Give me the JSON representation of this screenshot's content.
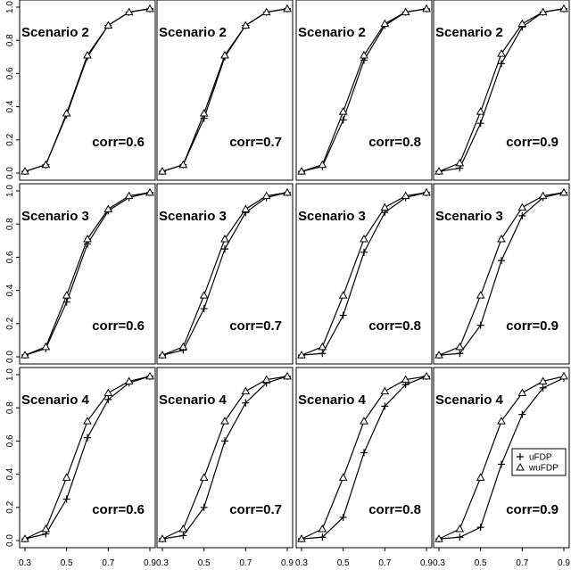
{
  "chart_data": {
    "type": "line",
    "layout": "grid of 12 small-multiple panels (3 rows x 4 columns)",
    "x_ticks": [
      0.3,
      0.5,
      0.7,
      0.9
    ],
    "y_ticks": [
      0.0,
      0.2,
      0.4,
      0.6,
      0.8,
      1.0
    ],
    "xlim": [
      0.3,
      0.9
    ],
    "ylim": [
      0.0,
      1.0
    ],
    "x": [
      0.3,
      0.4,
      0.5,
      0.6,
      0.7,
      0.8,
      0.9
    ],
    "grid": false,
    "legend": {
      "placement": "lower-right of bottom-right panel",
      "entries": [
        {
          "label": "uFDP",
          "marker": "plus"
        },
        {
          "label": "wuFDP",
          "marker": "triangle"
        }
      ]
    },
    "panels": [
      {
        "title": "Scenario 2",
        "corr": "corr=0.6",
        "series": [
          {
            "name": "uFDP",
            "values": [
              0.01,
              0.05,
              0.35,
              0.7,
              0.89,
              0.97,
              0.99
            ]
          },
          {
            "name": "wuFDP",
            "values": [
              0.01,
              0.05,
              0.36,
              0.71,
              0.89,
              0.97,
              0.99
            ]
          }
        ]
      },
      {
        "title": "Scenario 2",
        "corr": "corr=0.7",
        "series": [
          {
            "name": "uFDP",
            "values": [
              0.01,
              0.05,
              0.33,
              0.7,
              0.89,
              0.97,
              0.99
            ]
          },
          {
            "name": "wuFDP",
            "values": [
              0.01,
              0.05,
              0.36,
              0.71,
              0.89,
              0.97,
              0.99
            ]
          }
        ]
      },
      {
        "title": "Scenario 2",
        "corr": "corr=0.8",
        "series": [
          {
            "name": "uFDP",
            "values": [
              0.01,
              0.04,
              0.32,
              0.68,
              0.89,
              0.97,
              0.99
            ]
          },
          {
            "name": "wuFDP",
            "values": [
              0.01,
              0.05,
              0.37,
              0.71,
              0.9,
              0.97,
              0.99
            ]
          }
        ]
      },
      {
        "title": "Scenario 2",
        "corr": "corr=0.9",
        "series": [
          {
            "name": "uFDP",
            "values": [
              0.01,
              0.03,
              0.3,
              0.66,
              0.88,
              0.97,
              0.99
            ]
          },
          {
            "name": "wuFDP",
            "values": [
              0.01,
              0.06,
              0.37,
              0.72,
              0.9,
              0.97,
              0.99
            ]
          }
        ]
      },
      {
        "title": "Scenario 3",
        "corr": "corr=0.6",
        "series": [
          {
            "name": "uFDP",
            "values": [
              0.01,
              0.05,
              0.33,
              0.68,
              0.88,
              0.96,
              0.99
            ]
          },
          {
            "name": "wuFDP",
            "values": [
              0.01,
              0.06,
              0.37,
              0.71,
              0.89,
              0.97,
              0.99
            ]
          }
        ]
      },
      {
        "title": "Scenario 3",
        "corr": "corr=0.7",
        "series": [
          {
            "name": "uFDP",
            "values": [
              0.01,
              0.04,
              0.29,
              0.65,
              0.87,
              0.96,
              0.99
            ]
          },
          {
            "name": "wuFDP",
            "values": [
              0.01,
              0.06,
              0.37,
              0.71,
              0.89,
              0.97,
              0.99
            ]
          }
        ]
      },
      {
        "title": "Scenario 3",
        "corr": "corr=0.8",
        "series": [
          {
            "name": "uFDP",
            "values": [
              0.01,
              0.02,
              0.25,
              0.63,
              0.87,
              0.96,
              0.99
            ]
          },
          {
            "name": "wuFDP",
            "values": [
              0.01,
              0.06,
              0.37,
              0.71,
              0.9,
              0.97,
              0.99
            ]
          }
        ]
      },
      {
        "title": "Scenario 3",
        "corr": "corr=0.9",
        "series": [
          {
            "name": "uFDP",
            "values": [
              0.01,
              0.02,
              0.19,
              0.58,
              0.85,
              0.96,
              0.99
            ]
          },
          {
            "name": "wuFDP",
            "values": [
              0.01,
              0.06,
              0.37,
              0.71,
              0.9,
              0.97,
              0.99
            ]
          }
        ]
      },
      {
        "title": "Scenario 4",
        "corr": "corr=0.6",
        "series": [
          {
            "name": "uFDP",
            "values": [
              0.01,
              0.04,
              0.25,
              0.62,
              0.85,
              0.95,
              0.99
            ]
          },
          {
            "name": "wuFDP",
            "values": [
              0.01,
              0.07,
              0.38,
              0.72,
              0.89,
              0.96,
              0.99
            ]
          }
        ]
      },
      {
        "title": "Scenario 4",
        "corr": "corr=0.7",
        "series": [
          {
            "name": "uFDP",
            "values": [
              0.01,
              0.03,
              0.2,
              0.6,
              0.83,
              0.95,
              0.99
            ]
          },
          {
            "name": "wuFDP",
            "values": [
              0.01,
              0.07,
              0.38,
              0.72,
              0.9,
              0.97,
              0.99
            ]
          }
        ]
      },
      {
        "title": "Scenario 4",
        "corr": "corr=0.8",
        "series": [
          {
            "name": "uFDP",
            "values": [
              0.01,
              0.02,
              0.14,
              0.53,
              0.81,
              0.94,
              0.99
            ]
          },
          {
            "name": "wuFDP",
            "values": [
              0.01,
              0.07,
              0.38,
              0.72,
              0.9,
              0.97,
              0.99
            ]
          }
        ]
      },
      {
        "title": "Scenario 4",
        "corr": "corr=0.9",
        "series": [
          {
            "name": "uFDP",
            "values": [
              0.01,
              0.02,
              0.08,
              0.46,
              0.76,
              0.92,
              0.98
            ]
          },
          {
            "name": "wuFDP",
            "values": [
              0.01,
              0.07,
              0.38,
              0.72,
              0.89,
              0.96,
              0.99
            ]
          }
        ]
      }
    ]
  }
}
